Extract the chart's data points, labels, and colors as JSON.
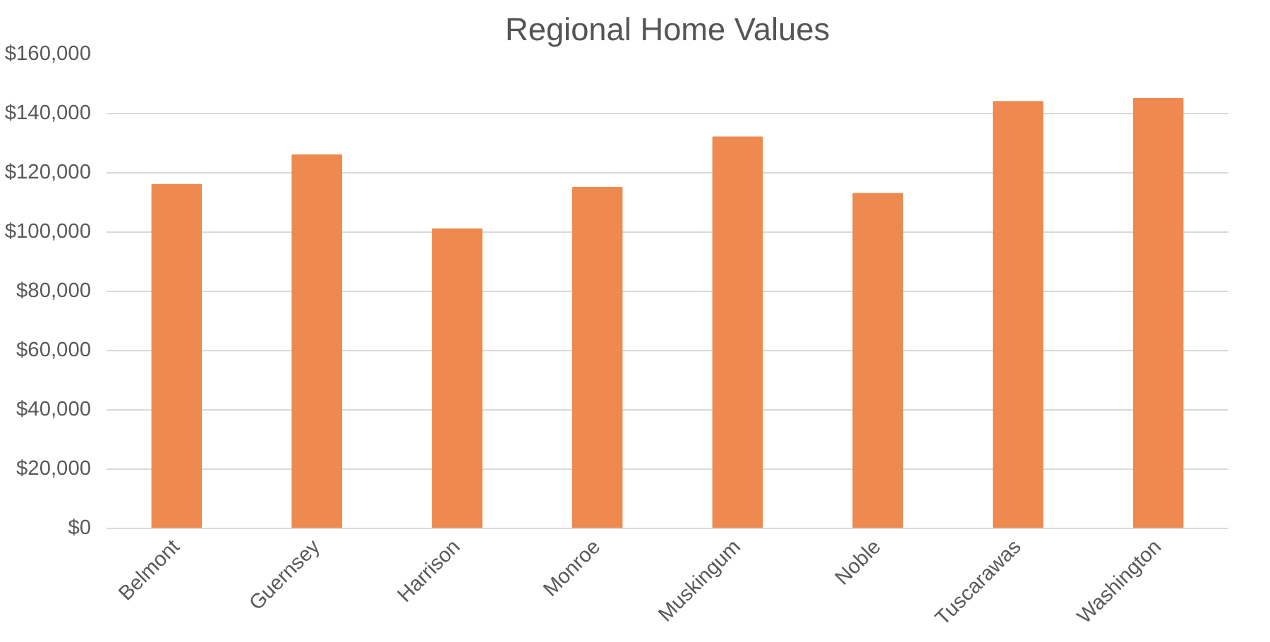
{
  "chart_data": {
    "type": "bar",
    "title": "Regional Home Values",
    "categories": [
      "Belmont",
      "Guernsey",
      "Harrison",
      "Monroe",
      "Muskingum",
      "Noble",
      "Tuscarawas",
      "Washington"
    ],
    "values": [
      116000,
      126000,
      101000,
      115000,
      132000,
      113000,
      144000,
      145000
    ],
    "color": "#ee8a4f",
    "ylim": [
      0,
      160000
    ],
    "yticks": [
      {
        "value": 0,
        "label": "$0"
      },
      {
        "value": 20000,
        "label": "$20,000"
      },
      {
        "value": 40000,
        "label": "$40,000"
      },
      {
        "value": 60000,
        "label": "$60,000"
      },
      {
        "value": 80000,
        "label": "$80,000"
      },
      {
        "value": 100000,
        "label": "$100,000"
      },
      {
        "value": 120000,
        "label": "$120,000"
      },
      {
        "value": 140000,
        "label": "$140,000"
      },
      {
        "value": 160000,
        "label": "$160,000"
      }
    ],
    "grid": "y"
  }
}
